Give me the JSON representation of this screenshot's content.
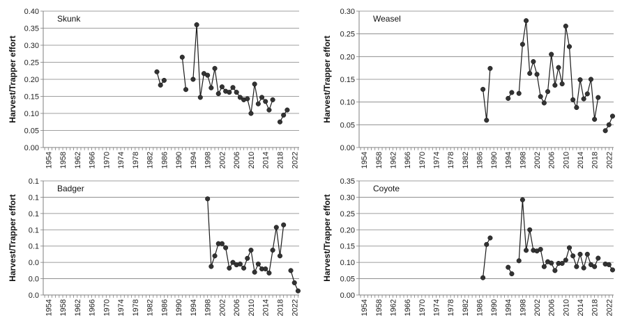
{
  "chart_data": [
    {
      "type": "line",
      "title": "Skunk",
      "ylabel": "Harvest/Trapper effort",
      "xlabel": "",
      "ylim": [
        0,
        0.4
      ],
      "yticks": [
        "0.00",
        "0.05",
        "0.10",
        "0.15",
        "0.20",
        "0.25",
        "0.30",
        "0.35",
        "0.40"
      ],
      "xticks": [
        "1954",
        "1958",
        "1962",
        "1966",
        "1970",
        "1974",
        "1978",
        "1982",
        "1986",
        "1990",
        "1994",
        "1998",
        "2002",
        "2006",
        "2010",
        "2014",
        "2018",
        "2022"
      ],
      "series": [
        {
          "name": "Skunk",
          "points": [
            [
              1984,
              0.222
            ],
            [
              1985,
              0.183
            ],
            [
              1986,
              0.197
            ],
            null,
            [
              1991,
              0.265
            ],
            [
              1992,
              0.17
            ],
            null,
            [
              1994,
              0.2
            ],
            [
              1995,
              0.36
            ],
            [
              1996,
              0.147
            ],
            [
              1997,
              0.217
            ],
            [
              1998,
              0.212
            ],
            [
              1999,
              0.175
            ],
            [
              2000,
              0.232
            ],
            [
              2001,
              0.158
            ],
            [
              2002,
              0.178
            ],
            [
              2003,
              0.165
            ],
            [
              2004,
              0.162
            ],
            [
              2005,
              0.176
            ],
            [
              2006,
              0.162
            ],
            [
              2007,
              0.147
            ],
            [
              2008,
              0.14
            ],
            [
              2009,
              0.143
            ],
            [
              2010,
              0.1
            ],
            [
              2011,
              0.186
            ],
            [
              2012,
              0.128
            ],
            [
              2013,
              0.147
            ],
            [
              2014,
              0.135
            ],
            [
              2015,
              0.11
            ],
            [
              2016,
              0.14
            ],
            null,
            [
              2018,
              0.075
            ],
            [
              2019,
              0.095
            ],
            [
              2020,
              0.11
            ]
          ]
        }
      ]
    },
    {
      "type": "line",
      "title": "Weasel",
      "ylabel": "Harvest/Trapper effort",
      "xlabel": "",
      "ylim": [
        0,
        0.3
      ],
      "yticks": [
        "0.00",
        "0.05",
        "0.10",
        "0.15",
        "0.20",
        "0.25",
        "0.30"
      ],
      "xticks": [
        "1954",
        "1958",
        "1962",
        "1966",
        "1970",
        "1974",
        "1978",
        "1982",
        "1986",
        "1990",
        "1994",
        "1998",
        "2002",
        "2006",
        "2010",
        "2014",
        "2018",
        "2022"
      ],
      "series": [
        {
          "name": "Weasel",
          "points": [
            [
              1987,
              0.128
            ],
            [
              1988,
              0.06
            ],
            [
              1989,
              0.174
            ],
            null,
            [
              1994,
              0.108
            ],
            [
              1995,
              0.121
            ],
            null,
            [
              1997,
              0.119
            ],
            [
              1998,
              0.227
            ],
            [
              1999,
              0.279
            ],
            [
              2000,
              0.163
            ],
            [
              2001,
              0.189
            ],
            [
              2002,
              0.161
            ],
            [
              2003,
              0.112
            ],
            [
              2004,
              0.098
            ],
            [
              2005,
              0.123
            ],
            [
              2006,
              0.205
            ],
            [
              2007,
              0.137
            ],
            [
              2008,
              0.176
            ],
            [
              2009,
              0.14
            ],
            [
              2010,
              0.267
            ],
            [
              2011,
              0.222
            ],
            [
              2012,
              0.105
            ],
            [
              2013,
              0.088
            ],
            [
              2014,
              0.149
            ],
            [
              2015,
              0.107
            ],
            [
              2016,
              0.118
            ],
            [
              2017,
              0.15
            ],
            [
              2018,
              0.062
            ],
            [
              2019,
              0.11
            ],
            null,
            [
              2021,
              0.037
            ],
            [
              2022,
              0.05
            ],
            [
              2023,
              0.069
            ]
          ]
        }
      ]
    },
    {
      "type": "line",
      "title": "Badger",
      "ylabel": "Harvest/Trapper effort",
      "xlabel": "",
      "ylim": [
        0,
        0.14
      ],
      "yticks": [
        "0.0",
        "0.0",
        "0.0",
        "0.1",
        "0.1",
        "0.1",
        "0.1",
        "0.1"
      ],
      "xticks": [
        "1954",
        "1958",
        "1962",
        "1966",
        "1970",
        "1974",
        "1978",
        "1982",
        "1986",
        "1990",
        "1994",
        "1998",
        "2002",
        "2006",
        "2010",
        "2014",
        "2018",
        "2022"
      ],
      "series": [
        {
          "name": "Badger",
          "points": [
            [
              1998,
              0.118
            ],
            [
              1999,
              0.035
            ],
            [
              2000,
              0.048
            ],
            [
              2001,
              0.063
            ],
            [
              2002,
              0.063
            ],
            [
              2003,
              0.058
            ],
            [
              2004,
              0.033
            ],
            [
              2005,
              0.04
            ],
            [
              2006,
              0.037
            ],
            [
              2007,
              0.038
            ],
            [
              2008,
              0.033
            ],
            [
              2009,
              0.045
            ],
            [
              2010,
              0.055
            ],
            [
              2011,
              0.028
            ],
            [
              2012,
              0.038
            ],
            [
              2013,
              0.032
            ],
            [
              2014,
              0.032
            ],
            [
              2015,
              0.027
            ],
            [
              2016,
              0.055
            ],
            [
              2017,
              0.083
            ],
            [
              2018,
              0.048
            ],
            [
              2019,
              0.086
            ],
            null,
            [
              2021,
              0.03
            ],
            [
              2022,
              0.015
            ],
            [
              2023,
              0.005
            ]
          ]
        }
      ]
    },
    {
      "type": "line",
      "title": "Coyote",
      "ylabel": "Harvest/Trapper effort",
      "xlabel": "",
      "ylim": [
        0,
        0.35
      ],
      "yticks": [
        "0.00",
        "0.05",
        "0.10",
        "0.15",
        "0.20",
        "0.25",
        "0.30",
        "0.35"
      ],
      "xticks": [
        "1954",
        "1958",
        "1962",
        "1966",
        "1970",
        "1974",
        "1978",
        "1982",
        "1986",
        "1990",
        "1994",
        "1998",
        "2002",
        "2006",
        "2010",
        "2014",
        "2018",
        "2022"
      ],
      "series": [
        {
          "name": "Coyote",
          "points": [
            [
              1987,
              0.053
            ],
            [
              1988,
              0.155
            ],
            [
              1989,
              0.175
            ],
            null,
            [
              1994,
              0.085
            ],
            [
              1995,
              0.065
            ],
            null,
            [
              1997,
              0.105
            ],
            [
              1998,
              0.292
            ],
            [
              1999,
              0.137
            ],
            [
              2000,
              0.2
            ],
            [
              2001,
              0.137
            ],
            [
              2002,
              0.135
            ],
            [
              2003,
              0.14
            ],
            [
              2004,
              0.087
            ],
            [
              2005,
              0.102
            ],
            [
              2006,
              0.098
            ],
            [
              2007,
              0.075
            ],
            [
              2008,
              0.097
            ],
            [
              2009,
              0.097
            ],
            [
              2010,
              0.107
            ],
            [
              2011,
              0.145
            ],
            [
              2012,
              0.12
            ],
            [
              2013,
              0.087
            ],
            [
              2014,
              0.125
            ],
            [
              2015,
              0.083
            ],
            [
              2016,
              0.125
            ],
            [
              2017,
              0.093
            ],
            [
              2018,
              0.087
            ],
            [
              2019,
              0.113
            ],
            null,
            [
              2021,
              0.095
            ],
            [
              2022,
              0.093
            ],
            [
              2023,
              0.077
            ]
          ]
        }
      ]
    }
  ]
}
